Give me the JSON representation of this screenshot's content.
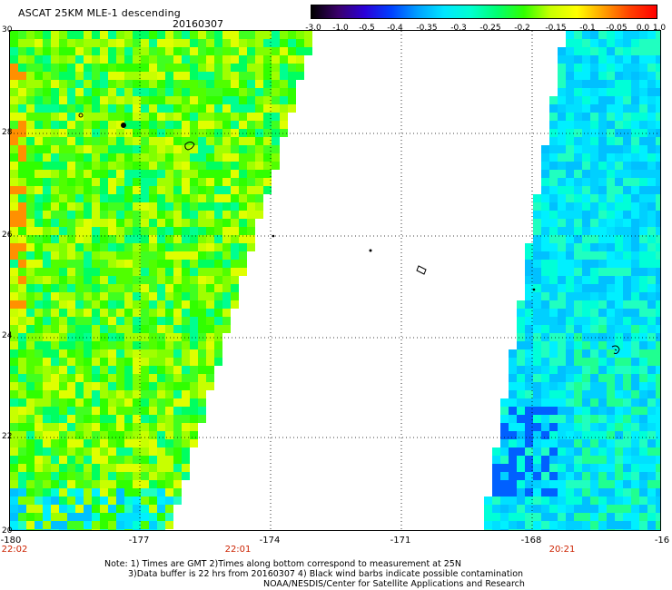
{
  "header": {
    "title": "ASCAT 25KM MLE-1 descending",
    "date": "20160307"
  },
  "colorbar": {
    "stops": [
      "#000000",
      "#3a006a",
      "#2b00d8",
      "#0040ff",
      "#00a0ff",
      "#00e6ff",
      "#00ffd0",
      "#00ff70",
      "#30ff00",
      "#c8ff00",
      "#ffff00",
      "#ffa000",
      "#ff4000",
      "#ff0000"
    ],
    "ticks": [
      "-3.0",
      "-1.0",
      "-0.5",
      "-0.4",
      "-0.35",
      "-0.3",
      "-0.25",
      "-0.2",
      "-0.15",
      "-0.1",
      "-0.05",
      "0.0",
      "1.0"
    ]
  },
  "map": {
    "lat_labels": [
      "30",
      "28",
      "26",
      "24",
      "22",
      "20"
    ],
    "lon_labels": [
      "-180",
      "-177",
      "-174",
      "-171",
      "-168",
      "-16"
    ],
    "time_labels": [
      "22:02",
      "22:01",
      "20:21"
    ]
  },
  "swaths": {
    "west_colors": [
      "#30ff00",
      "#50ff00",
      "#80ff00",
      "#a0ff00",
      "#c8ff00",
      "#e0ff00",
      "#00ff60",
      "#00ff90",
      "#40ff20"
    ],
    "east_colors": [
      "#00ffd8",
      "#00f0ff",
      "#00e0ff",
      "#00d0ff",
      "#00c0ff",
      "#20ffc0"
    ],
    "accent_orange": "#ff9000",
    "accent_blue": "#0060ff"
  },
  "footer": {
    "note_line1": "Note: 1) Times are GMT 2)Times along bottom correspond to measurement at 25N",
    "note_line2": "3)Data buffer is 22 hrs from 20160307 4) Black wind barbs indicate possible contamination",
    "note_line3": "NOAA/NESDIS/Center for Satellite Applications and Research"
  }
}
